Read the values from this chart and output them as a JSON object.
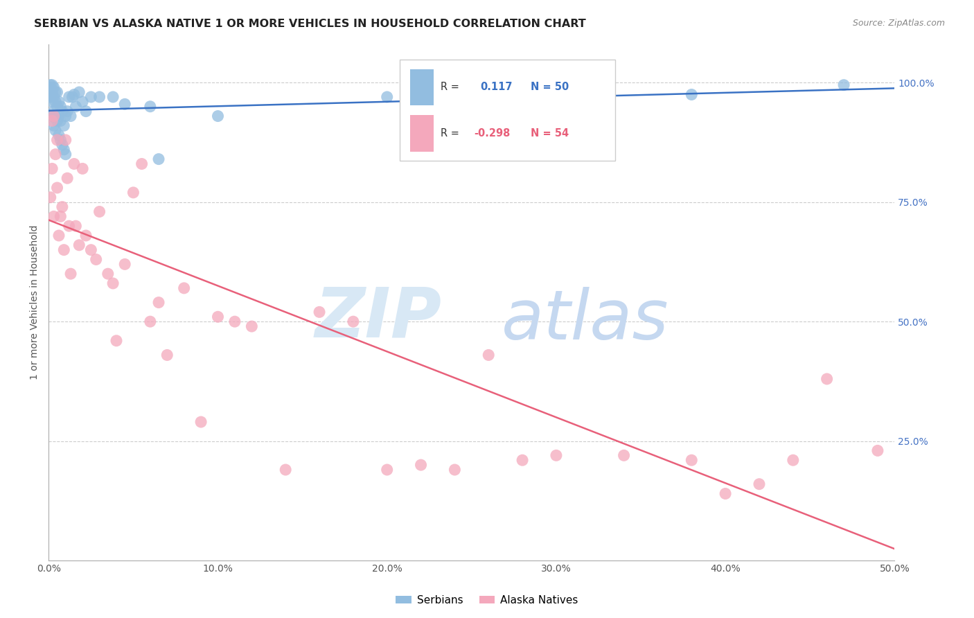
{
  "title": "SERBIAN VS ALASKA NATIVE 1 OR MORE VEHICLES IN HOUSEHOLD CORRELATION CHART",
  "source": "Source: ZipAtlas.com",
  "ylabel": "1 or more Vehicles in Household",
  "xlim": [
    0.0,
    0.5
  ],
  "ylim": [
    0.0,
    1.08
  ],
  "serbian_R": 0.117,
  "serbian_N": 50,
  "alaska_R": -0.298,
  "alaska_N": 54,
  "serbian_color": "#92bde0",
  "alaska_color": "#f4a8bc",
  "serbian_line_color": "#3a72c4",
  "alaska_line_color": "#e8607a",
  "watermark_zip_color": "#d8e8f5",
  "watermark_atlas_color": "#c5d8f0",
  "legend_serbian": "Serbians",
  "legend_alaska": "Alaska Natives",
  "grid_color": "#cccccc",
  "axis_color": "#aaaaaa",
  "right_tick_color": "#4472c4",
  "title_color": "#222222",
  "source_color": "#888888",
  "xlabel_ticks": [
    0.0,
    0.1,
    0.2,
    0.3,
    0.4,
    0.5
  ],
  "xlabel_labels": [
    "0.0%",
    "10.0%",
    "20.0%",
    "30.0%",
    "40.0%",
    "50.0%"
  ],
  "ylabel_ticks": [
    0.0,
    0.25,
    0.5,
    0.75,
    1.0
  ],
  "ylabel_labels": [
    "",
    "25.0%",
    "50.0%",
    "75.0%",
    "100.0%"
  ],
  "serbian_points_x": [
    0.001,
    0.001,
    0.001,
    0.002,
    0.002,
    0.002,
    0.002,
    0.003,
    0.003,
    0.003,
    0.003,
    0.004,
    0.004,
    0.004,
    0.004,
    0.005,
    0.005,
    0.005,
    0.006,
    0.006,
    0.006,
    0.007,
    0.007,
    0.007,
    0.008,
    0.008,
    0.009,
    0.009,
    0.01,
    0.01,
    0.011,
    0.012,
    0.013,
    0.014,
    0.015,
    0.016,
    0.018,
    0.02,
    0.022,
    0.025,
    0.03,
    0.038,
    0.045,
    0.06,
    0.065,
    0.1,
    0.2,
    0.26,
    0.38,
    0.47
  ],
  "serbian_points_y": [
    0.97,
    0.99,
    0.995,
    0.93,
    0.96,
    0.98,
    0.995,
    0.91,
    0.94,
    0.97,
    0.99,
    0.9,
    0.93,
    0.96,
    0.98,
    0.92,
    0.95,
    0.98,
    0.89,
    0.93,
    0.96,
    0.88,
    0.92,
    0.95,
    0.87,
    0.94,
    0.86,
    0.91,
    0.85,
    0.93,
    0.94,
    0.97,
    0.93,
    0.97,
    0.975,
    0.95,
    0.98,
    0.96,
    0.94,
    0.97,
    0.97,
    0.97,
    0.955,
    0.95,
    0.84,
    0.93,
    0.97,
    0.97,
    0.975,
    0.995
  ],
  "alaska_points_x": [
    0.001,
    0.002,
    0.002,
    0.003,
    0.003,
    0.004,
    0.005,
    0.005,
    0.006,
    0.007,
    0.008,
    0.009,
    0.01,
    0.011,
    0.012,
    0.013,
    0.015,
    0.016,
    0.018,
    0.02,
    0.022,
    0.025,
    0.028,
    0.03,
    0.035,
    0.038,
    0.04,
    0.045,
    0.05,
    0.055,
    0.06,
    0.065,
    0.07,
    0.08,
    0.09,
    0.1,
    0.11,
    0.12,
    0.14,
    0.16,
    0.18,
    0.2,
    0.22,
    0.24,
    0.26,
    0.28,
    0.3,
    0.34,
    0.38,
    0.4,
    0.42,
    0.44,
    0.46,
    0.49
  ],
  "alaska_points_y": [
    0.76,
    0.92,
    0.82,
    0.93,
    0.72,
    0.85,
    0.78,
    0.88,
    0.68,
    0.72,
    0.74,
    0.65,
    0.88,
    0.8,
    0.7,
    0.6,
    0.83,
    0.7,
    0.66,
    0.82,
    0.68,
    0.65,
    0.63,
    0.73,
    0.6,
    0.58,
    0.46,
    0.62,
    0.77,
    0.83,
    0.5,
    0.54,
    0.43,
    0.57,
    0.29,
    0.51,
    0.5,
    0.49,
    0.19,
    0.52,
    0.5,
    0.19,
    0.2,
    0.19,
    0.43,
    0.21,
    0.22,
    0.22,
    0.21,
    0.14,
    0.16,
    0.21,
    0.38,
    0.23
  ]
}
